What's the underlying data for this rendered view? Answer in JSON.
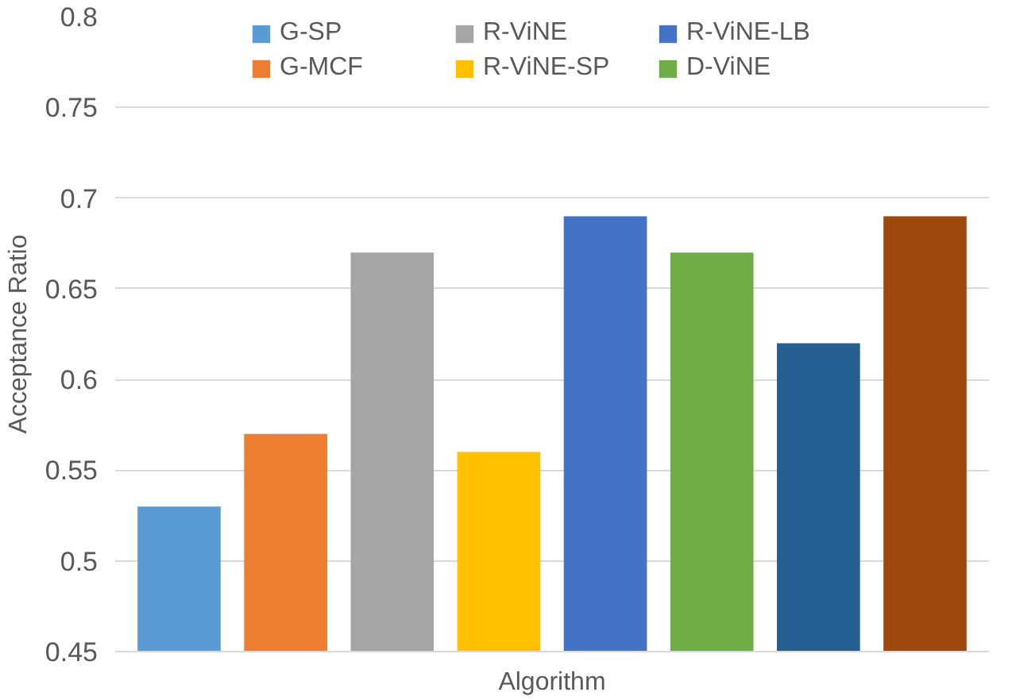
{
  "chart_data": {
    "type": "bar",
    "xlabel": "Algorithm",
    "ylabel": "Acceptance Ratio",
    "categories": [
      null,
      null,
      null,
      null,
      null,
      null,
      null,
      null
    ],
    "series": [
      {
        "name": "G-SP",
        "color": "#5b9bd5",
        "values": [
          0.53,
          null,
          null,
          null,
          null,
          null,
          null,
          null
        ]
      },
      {
        "name": "G-MCF",
        "color": "#ed7d31",
        "values": [
          null,
          0.57,
          null,
          null,
          null,
          null,
          null,
          null
        ]
      },
      {
        "name": "R-ViNE",
        "color": "#a5a5a5",
        "values": [
          null,
          null,
          0.67,
          null,
          null,
          null,
          null,
          null
        ]
      },
      {
        "name": "R-ViNE-SP",
        "color": "#ffc000",
        "values": [
          null,
          null,
          null,
          0.56,
          null,
          null,
          null,
          null
        ]
      },
      {
        "name": "R-ViNE-LB",
        "color": "#4472c4",
        "values": [
          null,
          null,
          null,
          null,
          0.69,
          null,
          null,
          null
        ]
      },
      {
        "name": "D-ViNE",
        "color": "#70ad47",
        "values": [
          null,
          null,
          null,
          null,
          null,
          0.67,
          null,
          null
        ]
      },
      {
        "color": "#255e91",
        "values": [
          null,
          null,
          null,
          null,
          null,
          null,
          0.62,
          null
        ]
      },
      {
        "color": "#9e480e",
        "values": [
          null,
          null,
          null,
          null,
          null,
          null,
          null,
          0.69
        ]
      }
    ],
    "ylim": [
      0.45,
      0.8
    ],
    "yticks": [
      0.45,
      0.5,
      0.55,
      0.6,
      0.65,
      0.7,
      0.75,
      0.8
    ],
    "grid": "y",
    "legend": "top"
  }
}
